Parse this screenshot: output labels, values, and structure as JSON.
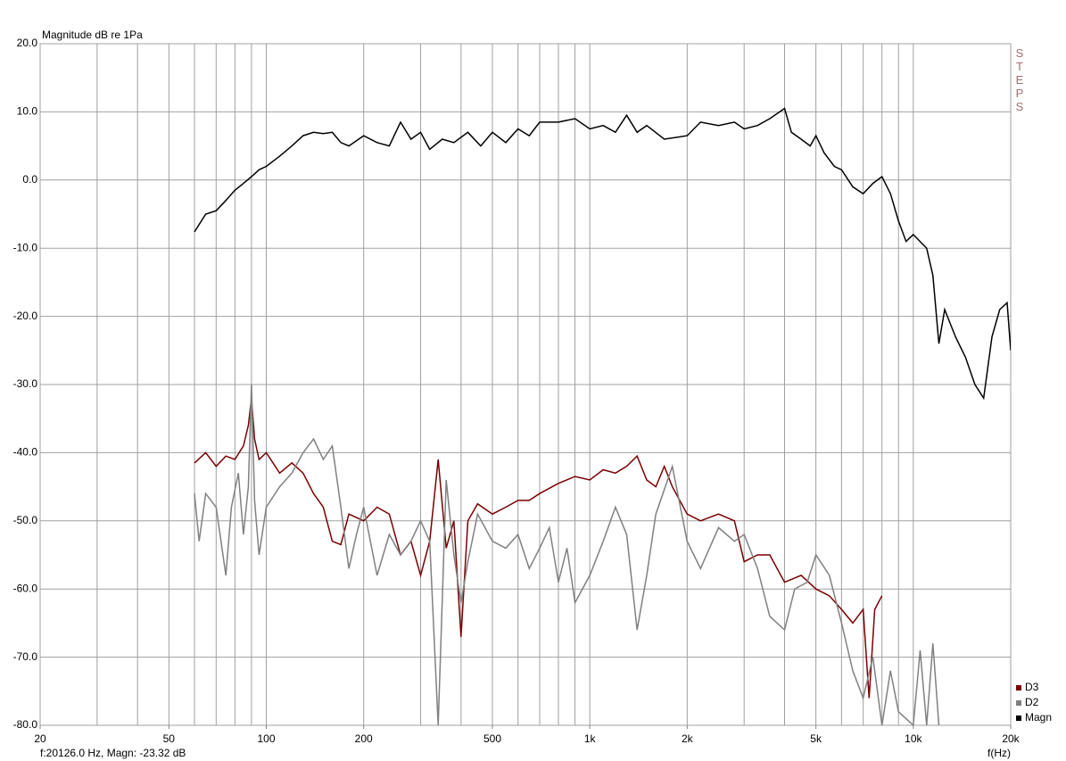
{
  "chart_data": {
    "type": "line",
    "title": "Magnitude dB re 1Pa",
    "watermark": "STEPS",
    "x_label": "f(Hz)",
    "status": "f:20126.0 Hz, Magn: -23.32 dB",
    "log_x": true,
    "grid": true,
    "legend": "bottom-right",
    "xlim": [
      20,
      20000
    ],
    "ylim": [
      -80,
      20
    ],
    "xticks": [
      20,
      50,
      100,
      200,
      500,
      {
        "value": 1000,
        "label": "1k"
      },
      {
        "value": 2000,
        "label": "2k"
      },
      {
        "value": 5000,
        "label": "5k"
      },
      {
        "value": 10000,
        "label": "10k"
      },
      {
        "value": 20000,
        "label": "20k"
      }
    ],
    "xgrid": [
      20,
      30,
      40,
      50,
      60,
      70,
      80,
      90,
      100,
      200,
      300,
      400,
      500,
      600,
      700,
      800,
      900,
      1000,
      2000,
      3000,
      4000,
      5000,
      6000,
      7000,
      8000,
      9000,
      10000,
      20000
    ],
    "yticks": [
      {
        "value": 20,
        "label": "20.0"
      },
      {
        "value": 10,
        "label": "10.0"
      },
      {
        "value": 0,
        "label": "0.0"
      },
      {
        "value": -10,
        "label": "-10.0"
      },
      {
        "value": -20,
        "label": "-20.0"
      },
      {
        "value": -30,
        "label": "-30.0"
      },
      {
        "value": -40,
        "label": "-40.0"
      },
      {
        "value": -50,
        "label": "-50.0"
      },
      {
        "value": -60,
        "label": "-60.0"
      },
      {
        "value": -70,
        "label": "-70.0"
      },
      {
        "value": -80,
        "label": "-80.0"
      }
    ],
    "series": [
      {
        "name": "D3",
        "color": "#7a0000",
        "x": [
          60,
          65,
          70,
          75,
          80,
          85,
          88,
          90,
          92,
          95,
          100,
          110,
          120,
          130,
          140,
          150,
          160,
          170,
          180,
          200,
          220,
          240,
          260,
          280,
          300,
          320,
          340,
          360,
          380,
          400,
          420,
          450,
          500,
          550,
          600,
          650,
          700,
          800,
          900,
          1000,
          1100,
          1200,
          1300,
          1400,
          1500,
          1600,
          1700,
          1800,
          2000,
          2200,
          2500,
          2800,
          3000,
          3300,
          3600,
          4000,
          4500,
          5000,
          5500,
          6000,
          6500,
          7000,
          7300,
          7600,
          8000
        ],
        "values": [
          -41.5,
          -40,
          -42,
          -40.5,
          -41,
          -39,
          -36,
          -32,
          -38,
          -41,
          -40,
          -43,
          -41.5,
          -43,
          -46,
          -48,
          -53,
          -53.5,
          -49,
          -50,
          -48,
          -49,
          -55,
          -53,
          -58,
          -53,
          -41,
          -54,
          -50,
          -67,
          -50,
          -47.5,
          -49,
          -48,
          -47,
          -47,
          -46,
          -44.5,
          -43.5,
          -44,
          -42.5,
          -43,
          -42,
          -40.5,
          -44,
          -45,
          -42,
          -45,
          -49,
          -50,
          -49,
          -50,
          -56,
          -55,
          -55,
          -59,
          -58,
          -60,
          -61,
          -63,
          -65,
          -63,
          -76,
          -63,
          -61
        ]
      },
      {
        "name": "D2",
        "color": "#808080",
        "x": [
          60,
          62,
          65,
          70,
          75,
          78,
          82,
          85,
          88,
          90,
          92,
          95,
          100,
          110,
          120,
          130,
          140,
          150,
          160,
          170,
          180,
          190,
          200,
          220,
          240,
          260,
          280,
          300,
          320,
          340,
          360,
          380,
          400,
          420,
          450,
          500,
          550,
          600,
          650,
          700,
          750,
          800,
          850,
          900,
          1000,
          1100,
          1200,
          1300,
          1400,
          1500,
          1600,
          1800,
          2000,
          2200,
          2500,
          2800,
          3000,
          3300,
          3600,
          4000,
          4300,
          4700,
          5000,
          5500,
          6000,
          6500,
          7000,
          7500,
          8000,
          8500,
          9000,
          10000,
          10500,
          11000,
          11500,
          12000
        ],
        "values": [
          -46,
          -53,
          -46,
          -48,
          -58,
          -48,
          -43,
          -52,
          -45,
          -30,
          -47,
          -55,
          -48,
          -45,
          -43,
          -40,
          -38,
          -41,
          -39,
          -48,
          -57,
          -52,
          -48,
          -58,
          -52,
          -55,
          -53,
          -50,
          -53,
          -80,
          -44,
          -55,
          -62,
          -56,
          -49,
          -53,
          -54,
          -52,
          -57,
          -54,
          -51,
          -59,
          -54,
          -62,
          -58,
          -53,
          -48,
          -52,
          -66,
          -58,
          -49,
          -42,
          -53,
          -57,
          -51,
          -53,
          -52,
          -57,
          -64,
          -66,
          -60,
          -59,
          -55,
          -58,
          -65,
          -72,
          -76,
          -70,
          -80,
          -72,
          -78,
          -80,
          -69,
          -80,
          -68,
          -80
        ]
      },
      {
        "name": "Magn",
        "color": "#000000",
        "x": [
          60,
          65,
          70,
          75,
          80,
          85,
          90,
          95,
          100,
          110,
          120,
          130,
          140,
          150,
          160,
          170,
          180,
          200,
          220,
          240,
          260,
          280,
          300,
          320,
          350,
          380,
          420,
          460,
          500,
          550,
          600,
          650,
          700,
          800,
          900,
          1000,
          1100,
          1200,
          1300,
          1400,
          1500,
          1700,
          2000,
          2200,
          2500,
          2800,
          3000,
          3300,
          3600,
          4000,
          4200,
          4500,
          4800,
          5000,
          5300,
          5700,
          6000,
          6500,
          7000,
          7500,
          8000,
          8500,
          9000,
          9500,
          10000,
          11000,
          11500,
          12000,
          12500,
          13500,
          14500,
          15500,
          16500,
          17500,
          18500,
          19500,
          20000
        ],
        "values": [
          -7.6,
          -5,
          -4.5,
          -3,
          -1.5,
          -0.5,
          0.5,
          1.5,
          2,
          3.5,
          5,
          6.5,
          7,
          6.8,
          7,
          5.5,
          5,
          6.5,
          5.5,
          5,
          8.5,
          6,
          7,
          4.5,
          6,
          5.5,
          7,
          5,
          7,
          5.5,
          7.5,
          6.5,
          8.5,
          8.5,
          9,
          7.5,
          8,
          7,
          9.5,
          7,
          8,
          6,
          6.5,
          8.5,
          8,
          8.5,
          7.5,
          8,
          9,
          10.5,
          7,
          6,
          5,
          6.5,
          4,
          2,
          1.5,
          -1,
          -2,
          -0.5,
          0.5,
          -2,
          -6,
          -9,
          -8,
          -10,
          -14,
          -24,
          -19,
          -23,
          -26,
          -30,
          -32,
          -23,
          -19,
          -18,
          -25
        ]
      }
    ]
  }
}
